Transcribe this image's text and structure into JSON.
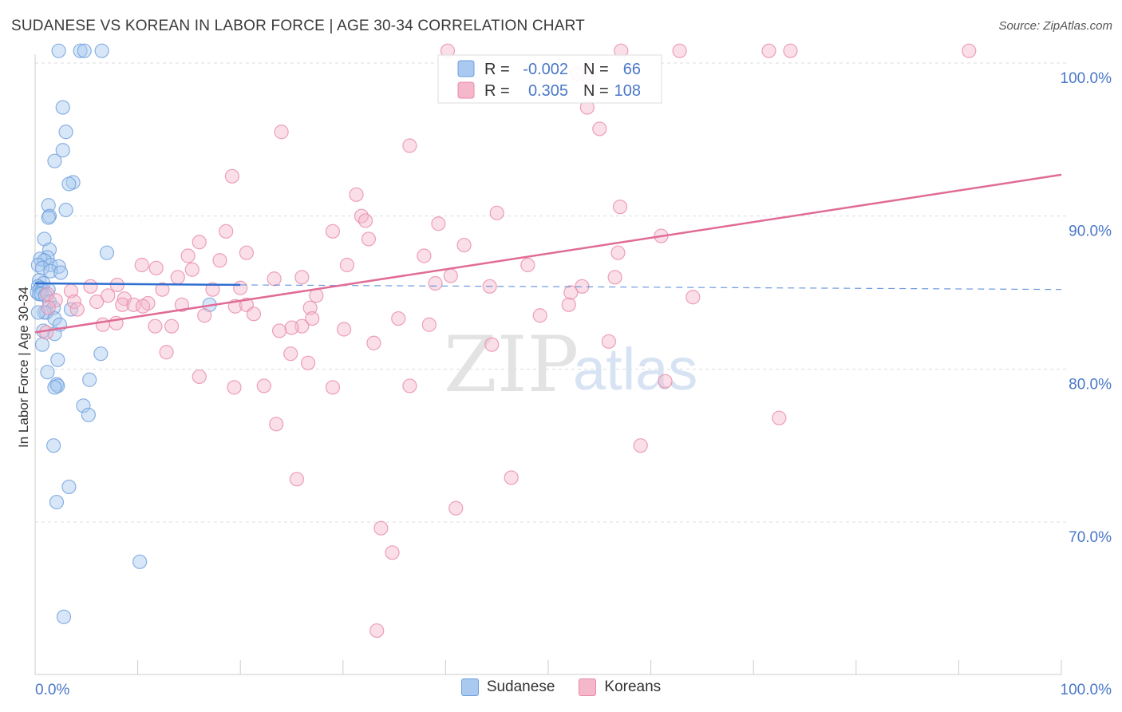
{
  "title": "SUDANESE VS KOREAN IN LABOR FORCE | AGE 30-34 CORRELATION CHART",
  "source": "Source: ZipAtlas.com",
  "watermark": {
    "zip": "ZIP",
    "atlas": "atlas"
  },
  "colors": {
    "sudanese_fill": "#a9c9f0",
    "sudanese_stroke": "#6f9fdc",
    "sudanese_line": "#2f6fd0",
    "koreans_fill": "#f5b8cb",
    "koreans_stroke": "#e98aa9",
    "koreans_line": "#e06b96",
    "axis_label": "#4a78c8",
    "grid": "#dddddd"
  },
  "stats": [
    {
      "r_label": "R =",
      "r_value": "-0.002",
      "n_label": "N =",
      "n_value": "66"
    },
    {
      "r_label": "R =",
      "r_value": "0.305",
      "n_label": "N =",
      "n_value": "108"
    }
  ],
  "chart_data": {
    "type": "scatter",
    "title": "SUDANESE VS KOREAN IN LABOR FORCE | AGE 30-34 CORRELATION CHART",
    "xlabel": "",
    "ylabel": "In Labor Force | Age 30-34",
    "xlim": [
      0,
      100
    ],
    "ylim": [
      61,
      101.5
    ],
    "x_tick_labels": [
      {
        "value": 0,
        "label": "0.0%"
      },
      {
        "value": 100,
        "label": "100.0%"
      }
    ],
    "y_tick_labels": [
      {
        "value": 70,
        "label": "70.0%"
      },
      {
        "value": 80,
        "label": "80.0%"
      },
      {
        "value": 90,
        "label": "90.0%"
      },
      {
        "value": 100,
        "label": "100.0%"
      }
    ],
    "grid": true,
    "legend_position": "bottom",
    "series": [
      {
        "name": "Sudanese",
        "trend": {
          "x": [
            0,
            20
          ],
          "y": [
            85.6,
            85.5
          ],
          "dashed_extension_to": 100,
          "dashed_end_y": 85.2
        },
        "points": [
          [
            2.3,
            100.8
          ],
          [
            4.4,
            100.8
          ],
          [
            4.8,
            100.8
          ],
          [
            6.5,
            100.8
          ],
          [
            2.7,
            97.1
          ],
          [
            3.0,
            95.5
          ],
          [
            2.7,
            94.3
          ],
          [
            1.9,
            93.6
          ],
          [
            3.7,
            92.2
          ],
          [
            3.3,
            92.1
          ],
          [
            1.3,
            90.7
          ],
          [
            3.0,
            90.4
          ],
          [
            1.4,
            90.0
          ],
          [
            1.3,
            89.9
          ],
          [
            0.9,
            88.5
          ],
          [
            1.4,
            87.8
          ],
          [
            7.0,
            87.6
          ],
          [
            1.2,
            87.3
          ],
          [
            0.5,
            87.2
          ],
          [
            0.9,
            87.1
          ],
          [
            0.3,
            86.8
          ],
          [
            1.5,
            86.8
          ],
          [
            2.3,
            86.7
          ],
          [
            0.7,
            86.6
          ],
          [
            1.5,
            86.4
          ],
          [
            2.5,
            86.3
          ],
          [
            0.4,
            85.8
          ],
          [
            0.8,
            85.6
          ],
          [
            0.3,
            85.4
          ],
          [
            0.5,
            85.3
          ],
          [
            0.7,
            85.2
          ],
          [
            1.3,
            85.2
          ],
          [
            0.2,
            85.0
          ],
          [
            0.4,
            84.9
          ],
          [
            0.6,
            84.9
          ],
          [
            1.0,
            84.8
          ],
          [
            1.4,
            84.4
          ],
          [
            17.0,
            84.2
          ],
          [
            1.8,
            84.0
          ],
          [
            3.5,
            83.9
          ],
          [
            1.1,
            83.7
          ],
          [
            0.9,
            83.7
          ],
          [
            0.3,
            83.7
          ],
          [
            1.9,
            83.3
          ],
          [
            2.4,
            82.9
          ],
          [
            0.8,
            82.5
          ],
          [
            1.9,
            82.3
          ],
          [
            0.7,
            81.6
          ],
          [
            6.4,
            81.0
          ],
          [
            2.2,
            80.6
          ],
          [
            1.2,
            79.8
          ],
          [
            5.3,
            79.3
          ],
          [
            2.1,
            79.0
          ],
          [
            2.2,
            78.9
          ],
          [
            1.9,
            78.8
          ],
          [
            4.7,
            77.6
          ],
          [
            5.2,
            77.0
          ],
          [
            1.8,
            75.0
          ],
          [
            3.3,
            72.3
          ],
          [
            2.1,
            71.3
          ],
          [
            10.2,
            67.4
          ],
          [
            2.8,
            63.8
          ]
        ]
      },
      {
        "name": "Koreans",
        "trend": {
          "x": [
            0,
            100
          ],
          "y": [
            82.4,
            92.7
          ]
        },
        "points": [
          [
            40.2,
            100.8
          ],
          [
            57.1,
            100.8
          ],
          [
            62.8,
            100.8
          ],
          [
            71.5,
            100.8
          ],
          [
            73.6,
            100.8
          ],
          [
            91.0,
            100.8
          ],
          [
            52.8,
            99.3
          ],
          [
            54.0,
            99.0
          ],
          [
            53.8,
            97.1
          ],
          [
            55.0,
            95.7
          ],
          [
            24.0,
            95.5
          ],
          [
            36.5,
            94.6
          ],
          [
            19.2,
            92.6
          ],
          [
            31.3,
            91.4
          ],
          [
            57.0,
            90.6
          ],
          [
            31.8,
            90.0
          ],
          [
            45.0,
            90.2
          ],
          [
            32.2,
            89.7
          ],
          [
            39.3,
            89.5
          ],
          [
            29.0,
            89.0
          ],
          [
            18.6,
            89.0
          ],
          [
            61.0,
            88.7
          ],
          [
            32.5,
            88.5
          ],
          [
            16.0,
            88.3
          ],
          [
            41.8,
            88.1
          ],
          [
            20.6,
            87.6
          ],
          [
            14.9,
            87.4
          ],
          [
            37.9,
            87.4
          ],
          [
            56.8,
            87.6
          ],
          [
            18.0,
            87.1
          ],
          [
            10.4,
            86.8
          ],
          [
            30.4,
            86.8
          ],
          [
            48.0,
            86.8
          ],
          [
            11.8,
            86.6
          ],
          [
            15.3,
            86.5
          ],
          [
            40.5,
            86.1
          ],
          [
            13.9,
            86.0
          ],
          [
            26.0,
            86.0
          ],
          [
            23.3,
            85.9
          ],
          [
            56.5,
            86.0
          ],
          [
            39.0,
            85.6
          ],
          [
            44.3,
            85.4
          ],
          [
            8.0,
            85.5
          ],
          [
            5.4,
            85.4
          ],
          [
            53.3,
            85.4
          ],
          [
            12.4,
            85.2
          ],
          [
            17.3,
            85.2
          ],
          [
            20.0,
            85.3
          ],
          [
            3.5,
            85.1
          ],
          [
            1.2,
            84.9
          ],
          [
            7.1,
            84.8
          ],
          [
            8.7,
            84.6
          ],
          [
            27.4,
            84.8
          ],
          [
            52.2,
            85.0
          ],
          [
            64.1,
            84.7
          ],
          [
            2.0,
            84.5
          ],
          [
            3.8,
            84.4
          ],
          [
            6.0,
            84.4
          ],
          [
            11.0,
            84.3
          ],
          [
            8.5,
            84.2
          ],
          [
            14.3,
            84.2
          ],
          [
            19.5,
            84.1
          ],
          [
            20.6,
            84.2
          ],
          [
            9.6,
            84.2
          ],
          [
            10.5,
            84.1
          ],
          [
            1.3,
            84.0
          ],
          [
            4.1,
            83.9
          ],
          [
            26.8,
            84.0
          ],
          [
            52.0,
            84.2
          ],
          [
            49.2,
            83.5
          ],
          [
            16.5,
            83.5
          ],
          [
            21.3,
            83.6
          ],
          [
            35.4,
            83.3
          ],
          [
            27.0,
            83.3
          ],
          [
            7.9,
            83.0
          ],
          [
            6.6,
            82.9
          ],
          [
            11.7,
            82.8
          ],
          [
            13.3,
            82.8
          ],
          [
            26.0,
            82.8
          ],
          [
            25.0,
            82.7
          ],
          [
            38.4,
            82.9
          ],
          [
            30.1,
            82.6
          ],
          [
            23.8,
            82.5
          ],
          [
            1.1,
            82.4
          ],
          [
            33.0,
            81.7
          ],
          [
            44.5,
            81.6
          ],
          [
            55.9,
            81.8
          ],
          [
            12.8,
            81.1
          ],
          [
            24.9,
            81.0
          ],
          [
            26.6,
            80.4
          ],
          [
            16.0,
            79.5
          ],
          [
            61.4,
            79.2
          ],
          [
            19.4,
            78.8
          ],
          [
            22.3,
            78.9
          ],
          [
            29.0,
            78.8
          ],
          [
            36.5,
            78.9
          ],
          [
            72.5,
            76.8
          ],
          [
            23.5,
            76.4
          ],
          [
            59.0,
            75.0
          ],
          [
            25.5,
            72.8
          ],
          [
            46.4,
            72.9
          ],
          [
            41.0,
            70.9
          ],
          [
            33.7,
            69.6
          ],
          [
            34.8,
            68.0
          ],
          [
            33.3,
            62.9
          ]
        ]
      }
    ]
  }
}
